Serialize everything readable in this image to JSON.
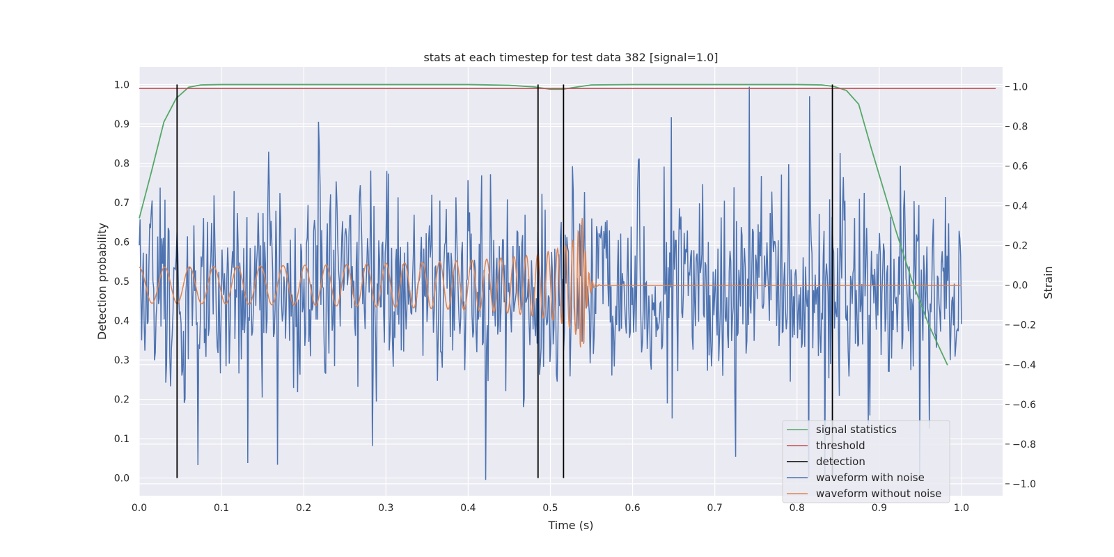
{
  "chart_data": {
    "type": "line",
    "title": "stats at each timestep for test data 382 [signal=1.0]",
    "xlabel": "Time (s)",
    "ylabel_left": "Detection probability",
    "ylabel_right": "Strain",
    "xlim": [
      0.0,
      1.05
    ],
    "ylim_left": [
      -0.045,
      1.045
    ],
    "ylim_right": [
      -1.06,
      1.1
    ],
    "x_ticks": [
      0.0,
      0.1,
      0.2,
      0.3,
      0.4,
      0.5,
      0.6,
      0.7,
      0.8,
      0.9,
      1.0
    ],
    "x_tick_labels": [
      "0.0",
      "0.1",
      "0.2",
      "0.3",
      "0.4",
      "0.5",
      "0.6",
      "0.7",
      "0.8",
      "0.9",
      "1.0"
    ],
    "y_left_ticks": [
      0.0,
      0.1,
      0.2,
      0.3,
      0.4,
      0.5,
      0.6,
      0.7,
      0.8,
      0.9,
      1.0
    ],
    "y_left_tick_labels": [
      "0.0",
      "0.1",
      "0.2",
      "0.3",
      "0.4",
      "0.5",
      "0.6",
      "0.7",
      "0.8",
      "0.9",
      "1.0"
    ],
    "y_right_ticks": [
      -1.0,
      -0.8,
      -0.6,
      -0.4,
      -0.2,
      0.0,
      0.2,
      0.4,
      0.6,
      0.8,
      1.0
    ],
    "y_right_tick_labels": [
      "−1.0",
      "−0.8",
      "−0.6",
      "−0.4",
      "−0.2",
      "0.0",
      "0.2",
      "0.4",
      "0.6",
      "0.8",
      "1.0"
    ],
    "grid": true,
    "legend_position": "lower-right",
    "colors": {
      "plot_background": "#eaeaf2",
      "grid": "#ffffff",
      "signal_statistics": "#55a868",
      "threshold": "#c44e52",
      "detection": "#000000",
      "waveform_with_noise": "#4c72b0",
      "waveform_without_noise": "#dd8452"
    },
    "series": [
      {
        "name": "signal statistics",
        "axis": "left",
        "x": [
          0.0,
          0.015,
          0.03,
          0.045,
          0.06,
          0.075,
          0.1,
          0.2,
          0.3,
          0.4,
          0.45,
          0.48,
          0.5,
          0.515,
          0.53,
          0.55,
          0.6,
          0.7,
          0.8,
          0.83,
          0.845,
          0.86,
          0.875,
          0.89,
          0.9,
          0.92,
          0.94,
          0.96,
          0.983
        ],
        "y": [
          0.66,
          0.78,
          0.905,
          0.965,
          0.993,
          0.999,
          1.0,
          1.0,
          1.0,
          1.0,
          0.998,
          0.994,
          0.988,
          0.988,
          0.993,
          0.999,
          1.0,
          1.0,
          1.0,
          0.999,
          0.995,
          0.985,
          0.95,
          0.84,
          0.77,
          0.63,
          0.5,
          0.39,
          0.287
        ]
      },
      {
        "name": "threshold",
        "axis": "left",
        "x": [
          -0.05,
          1.05
        ],
        "y": [
          0.99,
          0.99
        ]
      },
      {
        "name": "detection",
        "axis": "left",
        "x": [
          0.046,
          0.485,
          0.516,
          0.843
        ],
        "y_range": [
          0.0,
          1.0
        ]
      },
      {
        "name": "waveform with noise",
        "axis": "right",
        "x_range": [
          0.0,
          1.0
        ],
        "n_points": 1024,
        "seed": 382,
        "amplitude_range": [
          -0.98,
          1.0
        ]
      },
      {
        "name": "waveform without noise",
        "axis": "right",
        "x_range": [
          0.0,
          1.0
        ],
        "merger_time": 0.54,
        "start_frequency_hz": 32,
        "amplitude_start": 0.09,
        "amplitude_peak": 0.36
      }
    ],
    "legend_entries": [
      {
        "label": "signal statistics",
        "color": "#55a868"
      },
      {
        "label": "threshold",
        "color": "#c44e52"
      },
      {
        "label": "detection",
        "color": "#000000"
      },
      {
        "label": "waveform with noise",
        "color": "#4c72b0"
      },
      {
        "label": "waveform without noise",
        "color": "#dd8452"
      }
    ]
  }
}
